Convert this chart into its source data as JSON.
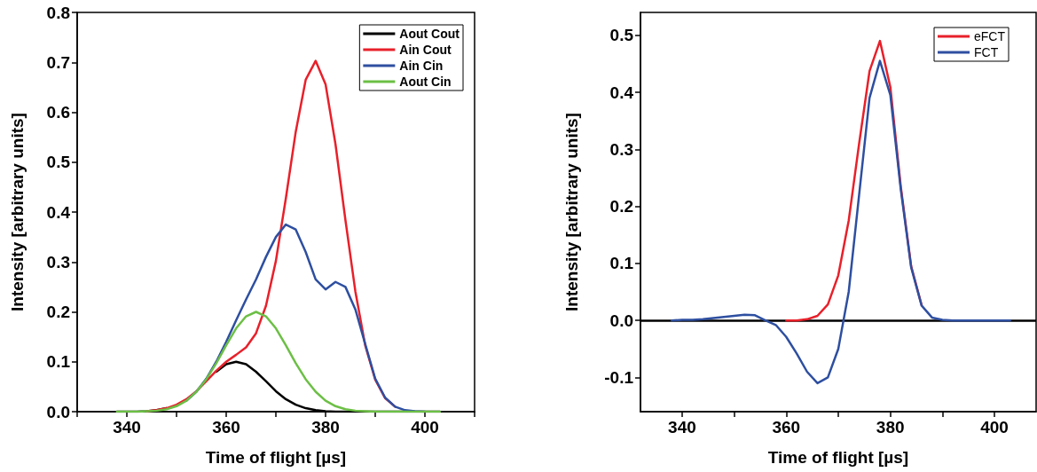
{
  "chart_data": [
    {
      "type": "line",
      "xlabel": "Time of flight [µs]",
      "ylabel": "Intensity [arbitrary units]",
      "x": [
        338,
        340,
        342,
        344,
        346,
        348,
        350,
        352,
        354,
        356,
        358,
        360,
        362,
        364,
        366,
        368,
        370,
        372,
        374,
        376,
        378,
        380,
        382,
        384,
        386,
        388,
        390,
        392,
        394,
        396,
        398,
        400,
        402,
        403
      ],
      "series": [
        {
          "name": "Aout Cout",
          "color": "#000000",
          "values": [
            0,
            0,
            0,
            0.001,
            0.003,
            0.007,
            null,
            null,
            null,
            null,
            0.08,
            0.095,
            0.1,
            0.095,
            0.08,
            0.061,
            0.041,
            0.025,
            0.014,
            0.007,
            0.003,
            0.001,
            0,
            0,
            0,
            0,
            0,
            0,
            0,
            0,
            0,
            0,
            0,
            0
          ]
        },
        {
          "name": "Ain Cout",
          "color": "#e8202a",
          "values": [
            null,
            null,
            null,
            0.001,
            0.003,
            0.007,
            0.014,
            0.025,
            0.041,
            0.061,
            0.082,
            0.1,
            0.114,
            0.129,
            0.157,
            0.212,
            0.302,
            0.427,
            0.561,
            0.665,
            0.703,
            0.656,
            0.536,
            0.384,
            0.241,
            0.132,
            0.064,
            0.027,
            0.01,
            null,
            null,
            null,
            null,
            null
          ]
        },
        {
          "name": "Ain Cin",
          "color": "#2e4fa0",
          "values": [
            null,
            null,
            null,
            null,
            null,
            null,
            null,
            0.022,
            0.04,
            0.066,
            0.1,
            0.14,
            0.183,
            0.225,
            0.265,
            0.31,
            0.35,
            0.375,
            0.365,
            0.32,
            0.265,
            0.245,
            0.26,
            0.25,
            0.205,
            0.135,
            0.066,
            0.028,
            0.01,
            0.003,
            0.001,
            0,
            null,
            null
          ]
        },
        {
          "name": "Aout Cin",
          "color": "#6cbf45",
          "values": [
            0,
            0,
            0,
            0.001,
            0.002,
            0.005,
            0.011,
            0.022,
            0.04,
            0.065,
            0.097,
            0.133,
            0.167,
            0.191,
            0.2,
            0.191,
            0.167,
            0.133,
            0.097,
            0.065,
            0.04,
            0.022,
            0.011,
            0.005,
            0.002,
            0.001,
            0,
            0,
            0,
            0,
            0,
            0,
            0,
            0
          ]
        }
      ],
      "xlim": [
        330,
        410
      ],
      "xticks": [
        {
          "value": 330,
          "label": null
        },
        340,
        {
          "value": 350,
          "label": null
        },
        360,
        {
          "value": 370,
          "label": null
        },
        380,
        {
          "value": 390,
          "label": null
        },
        400,
        {
          "value": 410,
          "label": null
        }
      ],
      "ylim": [
        0,
        0.8
      ],
      "yticks": [
        {
          "value": 0,
          "label": "0.0"
        },
        0.1,
        0.2,
        0.3,
        0.4,
        0.5,
        0.6,
        0.7,
        0.8
      ],
      "grid": false,
      "legend": "top right"
    },
    {
      "type": "line",
      "xlabel": "Time of flight [µs]",
      "ylabel": "Intensity [arbitrary units]",
      "x": [
        338,
        340,
        342,
        344,
        346,
        348,
        350,
        352,
        354,
        356,
        358,
        360,
        362,
        364,
        366,
        368,
        370,
        372,
        374,
        376,
        378,
        380,
        382,
        384,
        386,
        388,
        390,
        392,
        394,
        396,
        398,
        400,
        402,
        403
      ],
      "series": [
        {
          "name": "eFCT",
          "color": "#e8202a",
          "values": [
            null,
            null,
            null,
            null,
            null,
            null,
            null,
            null,
            null,
            null,
            null,
            0,
            0,
            0.002,
            0.008,
            0.028,
            0.079,
            0.175,
            0.31,
            0.437,
            0.49,
            0.409,
            0.235,
            0.095,
            0.027,
            null,
            null,
            null,
            null,
            null,
            null,
            null,
            null,
            null
          ]
        },
        {
          "name": "FCT",
          "color": "#2e4fa0",
          "values": [
            0,
            0.001,
            0.001,
            0.002,
            0.004,
            0.006,
            0.008,
            0.01,
            0.009,
            0,
            -0.008,
            -0.029,
            -0.058,
            -0.09,
            -0.11,
            -0.1,
            -0.05,
            0.05,
            0.22,
            0.39,
            0.455,
            0.395,
            0.23,
            0.093,
            0.026,
            0.005,
            0.001,
            0,
            0,
            0,
            0,
            0,
            0,
            0
          ]
        }
      ],
      "xlim": [
        332,
        408
      ],
      "xticks": [
        340,
        {
          "value": 350,
          "label": null
        },
        360,
        {
          "value": 370,
          "label": null
        },
        380,
        {
          "value": 390,
          "label": null
        },
        400
      ],
      "ylim": [
        -0.16,
        0.54
      ],
      "yticks": [
        -0.1,
        {
          "value": 0,
          "label": "0.0"
        },
        0.1,
        0.2,
        0.3,
        0.4,
        0.5
      ],
      "ref_lines": [
        {
          "axis": "y",
          "value": 0,
          "color": "#000000"
        }
      ],
      "grid": false,
      "legend": "top right"
    }
  ]
}
